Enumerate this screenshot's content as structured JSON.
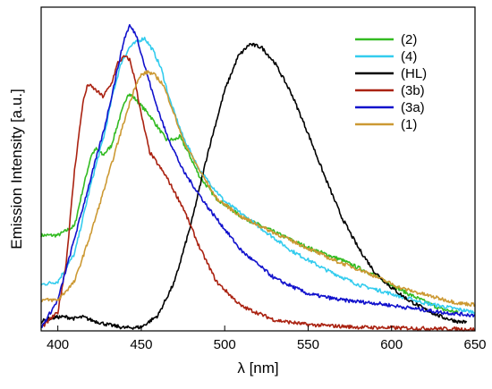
{
  "chart_data": {
    "type": "line",
    "title": "",
    "xlabel": "λ [nm]",
    "ylabel": "Emission Intensity [a.u.]",
    "xlim": [
      390,
      650
    ],
    "ylim": [
      0,
      1.05
    ],
    "x_ticks": [
      400,
      450,
      500,
      550,
      600,
      650
    ],
    "y_ticks_labeled": false,
    "grid": false,
    "legend_position": "top-right",
    "series": [
      {
        "name": "(2)",
        "color": "#33bb22",
        "points": [
          [
            390,
            0.31
          ],
          [
            400,
            0.31
          ],
          [
            410,
            0.34
          ],
          [
            415,
            0.46
          ],
          [
            420,
            0.57
          ],
          [
            423,
            0.59
          ],
          [
            427,
            0.57
          ],
          [
            432,
            0.6
          ],
          [
            437,
            0.69
          ],
          [
            442,
            0.77
          ],
          [
            445,
            0.76
          ],
          [
            450,
            0.73
          ],
          [
            455,
            0.7
          ],
          [
            460,
            0.66
          ],
          [
            465,
            0.62
          ],
          [
            470,
            0.62
          ],
          [
            473,
            0.63
          ],
          [
            478,
            0.58
          ],
          [
            485,
            0.5
          ],
          [
            495,
            0.43
          ],
          [
            510,
            0.37
          ],
          [
            530,
            0.32
          ],
          [
            550,
            0.27
          ],
          [
            570,
            0.23
          ],
          [
            590,
            0.18
          ],
          [
            610,
            0.12
          ],
          [
            630,
            0.07
          ],
          [
            640,
            0.06
          ]
        ]
      },
      {
        "name": "(4)",
        "color": "#33ccee",
        "points": [
          [
            390,
            0.15
          ],
          [
            400,
            0.16
          ],
          [
            410,
            0.25
          ],
          [
            420,
            0.48
          ],
          [
            428,
            0.64
          ],
          [
            433,
            0.77
          ],
          [
            438,
            0.87
          ],
          [
            443,
            0.92
          ],
          [
            448,
            0.94
          ],
          [
            452,
            0.95
          ],
          [
            457,
            0.91
          ],
          [
            462,
            0.85
          ],
          [
            467,
            0.75
          ],
          [
            475,
            0.63
          ],
          [
            485,
            0.52
          ],
          [
            500,
            0.42
          ],
          [
            520,
            0.34
          ],
          [
            540,
            0.26
          ],
          [
            560,
            0.2
          ],
          [
            580,
            0.15
          ],
          [
            600,
            0.12
          ],
          [
            620,
            0.09
          ],
          [
            640,
            0.07
          ],
          [
            650,
            0.06
          ]
        ]
      },
      {
        "name": "(HL)",
        "color": "#000000",
        "points": [
          [
            390,
            0.03
          ],
          [
            395,
            0.04
          ],
          [
            400,
            0.045
          ],
          [
            405,
            0.045
          ],
          [
            410,
            0.04
          ],
          [
            415,
            0.045
          ],
          [
            420,
            0.035
          ],
          [
            430,
            0.02
          ],
          [
            440,
            0.01
          ],
          [
            450,
            0.012
          ],
          [
            460,
            0.05
          ],
          [
            470,
            0.16
          ],
          [
            480,
            0.35
          ],
          [
            490,
            0.58
          ],
          [
            500,
            0.78
          ],
          [
            508,
            0.89
          ],
          [
            515,
            0.93
          ],
          [
            522,
            0.92
          ],
          [
            530,
            0.87
          ],
          [
            540,
            0.77
          ],
          [
            550,
            0.64
          ],
          [
            560,
            0.5
          ],
          [
            570,
            0.37
          ],
          [
            580,
            0.27
          ],
          [
            590,
            0.19
          ],
          [
            600,
            0.14
          ],
          [
            610,
            0.1
          ],
          [
            620,
            0.07
          ],
          [
            630,
            0.045
          ],
          [
            640,
            0.03
          ],
          [
            645,
            0.028
          ]
        ]
      },
      {
        "name": "(3b)",
        "color": "#aa2211",
        "points": [
          [
            390,
            0.01
          ],
          [
            400,
            0.06
          ],
          [
            405,
            0.22
          ],
          [
            410,
            0.52
          ],
          [
            415,
            0.74
          ],
          [
            418,
            0.8
          ],
          [
            423,
            0.78
          ],
          [
            427,
            0.76
          ],
          [
            432,
            0.8
          ],
          [
            436,
            0.87
          ],
          [
            440,
            0.89
          ],
          [
            443,
            0.88
          ],
          [
            446,
            0.82
          ],
          [
            450,
            0.7
          ],
          [
            455,
            0.58
          ],
          [
            465,
            0.5
          ],
          [
            475,
            0.4
          ],
          [
            485,
            0.27
          ],
          [
            495,
            0.16
          ],
          [
            510,
            0.08
          ],
          [
            530,
            0.035
          ],
          [
            550,
            0.02
          ],
          [
            580,
            0.012
          ],
          [
            620,
            0.008
          ],
          [
            650,
            0.005
          ]
        ]
      },
      {
        "name": "(3a)",
        "color": "#1111cc",
        "points": [
          [
            390,
            0.01
          ],
          [
            400,
            0.1
          ],
          [
            410,
            0.3
          ],
          [
            420,
            0.5
          ],
          [
            428,
            0.66
          ],
          [
            433,
            0.78
          ],
          [
            437,
            0.88
          ],
          [
            440,
            0.95
          ],
          [
            443,
            0.99
          ],
          [
            447,
            0.96
          ],
          [
            452,
            0.86
          ],
          [
            458,
            0.75
          ],
          [
            465,
            0.64
          ],
          [
            475,
            0.52
          ],
          [
            490,
            0.4
          ],
          [
            510,
            0.26
          ],
          [
            530,
            0.17
          ],
          [
            550,
            0.12
          ],
          [
            570,
            0.1
          ],
          [
            590,
            0.09
          ],
          [
            610,
            0.075
          ],
          [
            630,
            0.06
          ],
          [
            650,
            0.05
          ]
        ]
      },
      {
        "name": "(1)",
        "color": "#cc9933",
        "points": [
          [
            390,
            0.1
          ],
          [
            400,
            0.1
          ],
          [
            410,
            0.16
          ],
          [
            420,
            0.32
          ],
          [
            430,
            0.5
          ],
          [
            437,
            0.63
          ],
          [
            442,
            0.72
          ],
          [
            446,
            0.79
          ],
          [
            450,
            0.83
          ],
          [
            454,
            0.84
          ],
          [
            458,
            0.83
          ],
          [
            463,
            0.8
          ],
          [
            468,
            0.73
          ],
          [
            475,
            0.62
          ],
          [
            485,
            0.52
          ],
          [
            495,
            0.43
          ],
          [
            510,
            0.37
          ],
          [
            525,
            0.33
          ],
          [
            545,
            0.28
          ],
          [
            565,
            0.23
          ],
          [
            585,
            0.19
          ],
          [
            605,
            0.14
          ],
          [
            625,
            0.11
          ],
          [
            640,
            0.09
          ],
          [
            650,
            0.085
          ]
        ]
      }
    ]
  }
}
